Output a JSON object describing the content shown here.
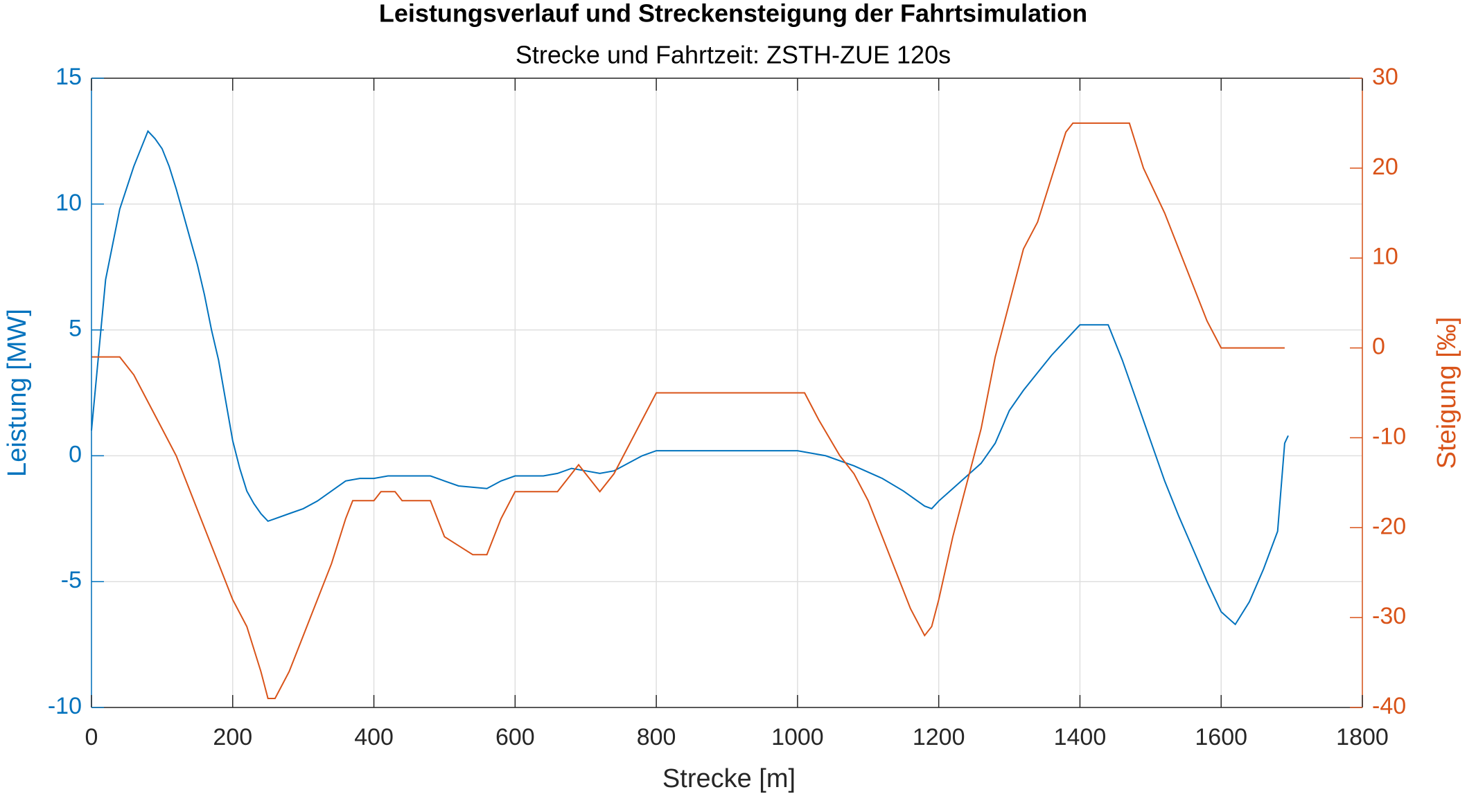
{
  "chart_data": {
    "type": "line",
    "title": "Leistungsverlauf und Streckensteigung der Fahrtsimulation",
    "subtitle": "Strecke und Fahrtzeit: ZSTH-ZUE 120s",
    "xlabel": "Strecke [m]",
    "ylabel": "Leistung [MW]",
    "y2label": "Steigung [‰]",
    "xlim": [
      0,
      1800
    ],
    "xticks": [
      0,
      200,
      400,
      600,
      800,
      1000,
      1200,
      1400,
      1600,
      1800
    ],
    "ylim": [
      -10,
      15
    ],
    "yticks": [
      -10,
      -5,
      0,
      5,
      10,
      15
    ],
    "y2lim": [
      -40,
      30
    ],
    "y2ticks": [
      -40,
      -30,
      -20,
      -10,
      0,
      10,
      20,
      30
    ],
    "grid": true,
    "ycolor": "#0072bd",
    "y2color": "#d95319",
    "series": [
      {
        "color": "#0072bd",
        "axis": "y",
        "x": [
          0,
          20,
          40,
          60,
          80,
          90,
          100,
          110,
          120,
          130,
          140,
          150,
          160,
          170,
          180,
          190,
          200,
          210,
          220,
          230,
          240,
          250,
          260,
          280,
          300,
          320,
          340,
          360,
          380,
          400,
          420,
          440,
          480,
          500,
          520,
          560,
          580,
          600,
          640,
          660,
          680,
          700,
          720,
          740,
          760,
          780,
          800,
          1000,
          1040,
          1080,
          1120,
          1150,
          1180,
          1190,
          1200,
          1220,
          1240,
          1260,
          1280,
          1300,
          1320,
          1340,
          1360,
          1380,
          1400,
          1440,
          1460,
          1480,
          1500,
          1520,
          1540,
          1560,
          1580,
          1600,
          1620,
          1640,
          1660,
          1680,
          1690,
          1695
        ],
        "values": [
          1.0,
          7,
          9.8,
          11.5,
          12.9,
          12.6,
          12.2,
          11.5,
          10.6,
          9.6,
          8.6,
          7.6,
          6.4,
          5,
          3.8,
          2.2,
          0.6,
          -0.5,
          -1.4,
          -1.9,
          -2.3,
          -2.6,
          -2.5,
          -2.3,
          -2.1,
          -1.8,
          -1.4,
          -1.0,
          -0.9,
          -0.9,
          -0.8,
          -0.8,
          -0.8,
          -1.0,
          -1.2,
          -1.3,
          -1.0,
          -0.8,
          -0.8,
          -0.7,
          -0.5,
          -0.6,
          -0.7,
          -0.6,
          -0.3,
          0.0,
          0.2,
          0.2,
          0.0,
          -0.4,
          -0.9,
          -1.4,
          -2.0,
          -2.1,
          -1.8,
          -1.3,
          -0.8,
          -0.3,
          0.5,
          1.8,
          2.6,
          3.3,
          4.0,
          4.6,
          5.2,
          5.2,
          3.8,
          2.2,
          0.6,
          -1.0,
          -2.4,
          -3.7,
          -5.0,
          -6.2,
          -6.7,
          -5.8,
          -4.5,
          -3.0,
          0.5,
          0.8
        ]
      },
      {
        "color": "#d95319",
        "axis": "y2",
        "x": [
          0,
          40,
          60,
          80,
          100,
          120,
          140,
          160,
          180,
          200,
          220,
          240,
          250,
          260,
          280,
          300,
          320,
          340,
          360,
          370,
          400,
          410,
          430,
          440,
          480,
          500,
          520,
          540,
          560,
          580,
          600,
          660,
          680,
          690,
          700,
          720,
          740,
          760,
          780,
          800,
          1010,
          1030,
          1060,
          1080,
          1100,
          1120,
          1140,
          1160,
          1180,
          1190,
          1200,
          1220,
          1240,
          1260,
          1280,
          1300,
          1320,
          1340,
          1360,
          1380,
          1390,
          1470,
          1490,
          1520,
          1560,
          1580,
          1600,
          1690
        ],
        "values": [
          -1,
          -1,
          -3,
          -6,
          -9,
          -12,
          -16,
          -20,
          -24,
          -28,
          -31,
          -36,
          -39,
          -39,
          -36,
          -32,
          -28,
          -24,
          -19,
          -17,
          -17,
          -16,
          -16,
          -17,
          -17,
          -21,
          -22,
          -23,
          -23,
          -19,
          -16,
          -16,
          -14,
          -13,
          -14,
          -16,
          -14,
          -11,
          -8,
          -5,
          -5,
          -8,
          -12,
          -14,
          -17,
          -21,
          -25,
          -29,
          -32,
          -31,
          -28,
          -21,
          -15,
          -9,
          -1,
          5,
          11,
          14,
          19,
          24,
          25,
          25,
          20,
          15,
          7,
          3,
          0,
          0
        ]
      }
    ]
  }
}
